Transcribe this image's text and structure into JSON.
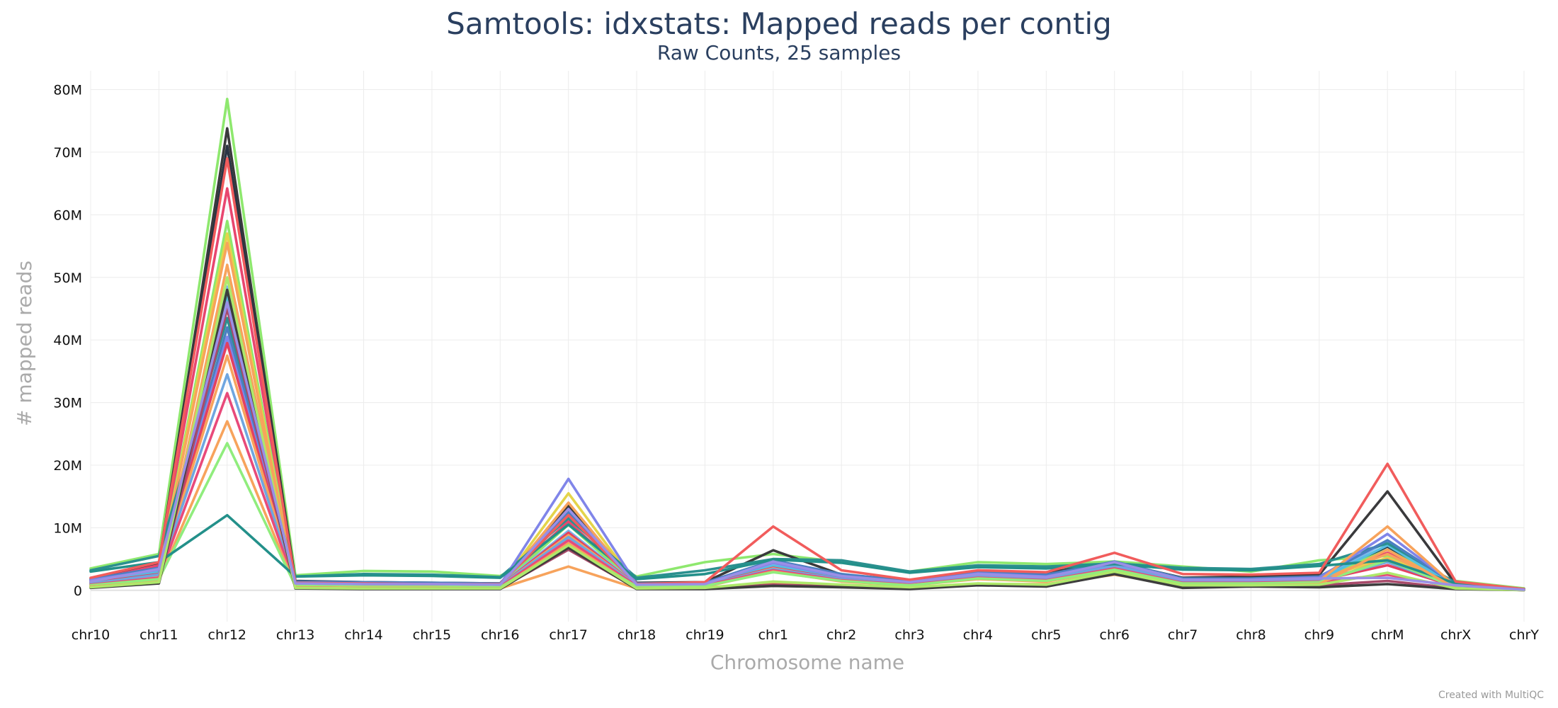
{
  "chart_data": {
    "type": "line",
    "title": "Samtools: idxstats: Mapped reads per contig",
    "subtitle": "Raw Counts, 25 samples",
    "xlabel": "Chromosome name",
    "ylabel": "# mapped reads",
    "credit": "Created with MultiQC",
    "categories": [
      "chr10",
      "chr11",
      "chr12",
      "chr13",
      "chr14",
      "chr15",
      "chr16",
      "chr17",
      "chr18",
      "chr19",
      "chr1",
      "chr2",
      "chr3",
      "chr4",
      "chr5",
      "chr6",
      "chr7",
      "chr8",
      "chr9",
      "chrM",
      "chrX",
      "chrY"
    ],
    "yticks": [
      0,
      10000000,
      20000000,
      30000000,
      40000000,
      50000000,
      60000000,
      70000000,
      80000000
    ],
    "ytick_labels": [
      "0",
      "10M",
      "20M",
      "30M",
      "40M",
      "50M",
      "60M",
      "70M",
      "80M"
    ],
    "ylim": [
      -5000000,
      83000000
    ],
    "grid": true,
    "legend": "none",
    "series": [
      {
        "color": "#8ee86e",
        "values": [
          3.5,
          5.8,
          78.5,
          2.4,
          3.1,
          3.0,
          2.3,
          8.0,
          2.2,
          4.5,
          5.8,
          4.5,
          3.0,
          4.5,
          4.2,
          4.6,
          3.8,
          3.0,
          4.8,
          5.5,
          1.5,
          0.3
        ]
      },
      {
        "color": "#3a3a3c",
        "values": [
          1.8,
          4.2,
          73.8,
          1.5,
          1.3,
          1.2,
          1.1,
          13.5,
          1.2,
          1.3,
          6.4,
          2.5,
          1.6,
          3.0,
          2.8,
          4.5,
          2.0,
          2.2,
          2.5,
          15.8,
          1.0,
          0.2
        ]
      },
      {
        "color": "#2a3444",
        "values": [
          1.5,
          3.8,
          71.0,
          1.2,
          1.1,
          1.0,
          0.9,
          12.0,
          0.9,
          1.1,
          3.0,
          2.0,
          1.2,
          2.5,
          2.0,
          4.0,
          1.5,
          1.5,
          1.8,
          7.0,
          0.7,
          0.1
        ]
      },
      {
        "color": "#e8466f",
        "values": [
          1.6,
          4.0,
          64.2,
          1.3,
          1.2,
          1.1,
          1.0,
          11.0,
          1.0,
          1.2,
          4.5,
          2.4,
          1.4,
          2.8,
          2.4,
          4.4,
          1.8,
          1.8,
          2.0,
          6.0,
          0.8,
          0.15
        ]
      },
      {
        "color": "#8ee86e",
        "values": [
          1.2,
          3.0,
          59.0,
          1.1,
          1.0,
          0.9,
          0.8,
          10.5,
          0.9,
          1.0,
          4.0,
          2.0,
          1.2,
          2.5,
          2.0,
          4.2,
          1.6,
          1.6,
          1.8,
          6.5,
          0.7,
          0.1
        ]
      },
      {
        "color": "#e4d44a",
        "values": [
          1.3,
          3.2,
          57.0,
          1.0,
          0.9,
          0.9,
          0.8,
          15.5,
          0.9,
          1.0,
          4.2,
          2.1,
          1.3,
          2.6,
          2.1,
          4.0,
          1.7,
          1.7,
          1.9,
          5.2,
          0.7,
          0.1
        ]
      },
      {
        "color": "#f7a35c",
        "values": [
          1.0,
          2.8,
          55.5,
          0.9,
          0.8,
          0.8,
          0.7,
          14.0,
          0.8,
          0.9,
          3.8,
          1.9,
          1.1,
          2.3,
          1.9,
          3.8,
          1.5,
          1.5,
          1.7,
          5.8,
          0.6,
          0.1
        ]
      },
      {
        "color": "#7cb5ec",
        "values": [
          1.4,
          3.1,
          48.5,
          1.1,
          1.0,
          0.9,
          0.8,
          9.5,
          0.9,
          1.0,
          4.0,
          2.0,
          1.2,
          2.4,
          2.0,
          4.1,
          1.6,
          1.6,
          1.8,
          7.8,
          0.7,
          0.1
        ]
      },
      {
        "color": "#55bfe0",
        "values": [
          1.3,
          3.0,
          47.0,
          1.0,
          0.9,
          0.9,
          0.8,
          9.0,
          0.8,
          0.9,
          3.9,
          1.9,
          1.1,
          2.3,
          1.9,
          4.0,
          1.5,
          1.5,
          1.7,
          7.2,
          0.6,
          0.1
        ]
      },
      {
        "color": "#2b908f",
        "values": [
          3.2,
          5.5,
          43.5,
          2.2,
          2.6,
          2.5,
          2.1,
          11.5,
          2.0,
          3.2,
          5.0,
          4.8,
          3.0,
          4.0,
          3.8,
          4.3,
          3.6,
          3.4,
          4.2,
          7.5,
          1.2,
          0.2
        ]
      },
      {
        "color": "#4a7fc1",
        "values": [
          1.8,
          3.6,
          42.0,
          1.4,
          1.3,
          1.2,
          1.1,
          12.5,
          1.1,
          1.2,
          4.8,
          2.6,
          1.5,
          2.9,
          2.5,
          4.6,
          1.9,
          1.9,
          2.2,
          8.0,
          0.9,
          0.15
        ]
      },
      {
        "color": "#8085e9",
        "values": [
          1.6,
          3.3,
          40.5,
          1.2,
          1.1,
          1.0,
          0.9,
          17.8,
          1.0,
          1.1,
          4.4,
          2.2,
          1.3,
          2.7,
          2.2,
          4.3,
          1.7,
          1.7,
          2.0,
          9.0,
          0.8,
          0.1
        ]
      },
      {
        "color": "#e4405f",
        "values": [
          1.2,
          2.6,
          39.5,
          1.0,
          0.9,
          0.8,
          0.7,
          9.2,
          0.8,
          0.9,
          3.6,
          1.8,
          1.0,
          2.2,
          1.8,
          3.7,
          1.4,
          1.4,
          1.6,
          4.0,
          0.6,
          0.1
        ]
      },
      {
        "color": "#f7a35c",
        "values": [
          1.0,
          2.4,
          37.5,
          0.9,
          0.8,
          0.8,
          0.7,
          8.8,
          0.8,
          0.8,
          3.5,
          1.7,
          1.0,
          2.1,
          1.7,
          3.6,
          1.3,
          1.3,
          1.5,
          10.2,
          0.6,
          0.1
        ]
      },
      {
        "color": "#6fa6e0",
        "values": [
          1.1,
          2.5,
          34.5,
          1.0,
          0.9,
          0.8,
          0.7,
          8.5,
          0.8,
          0.9,
          3.4,
          1.8,
          1.0,
          2.2,
          1.8,
          3.9,
          1.4,
          1.4,
          1.6,
          4.5,
          0.6,
          0.1
        ]
      },
      {
        "color": "#e84a7a",
        "values": [
          0.9,
          2.0,
          31.5,
          0.8,
          0.7,
          0.7,
          0.6,
          8.0,
          0.7,
          0.8,
          3.2,
          1.6,
          0.9,
          2.0,
          1.6,
          3.5,
          1.2,
          1.2,
          1.4,
          2.5,
          0.5,
          0.1
        ]
      },
      {
        "color": "#f7a35c",
        "values": [
          0.7,
          1.6,
          27.0,
          0.6,
          0.5,
          0.5,
          0.4,
          7.5,
          0.5,
          0.6,
          3.0,
          1.4,
          0.8,
          1.8,
          1.4,
          3.2,
          1.0,
          1.0,
          1.2,
          5.0,
          0.4,
          0.05
        ]
      },
      {
        "color": "#90ed7d",
        "values": [
          0.8,
          1.8,
          23.5,
          0.7,
          0.6,
          0.6,
          0.5,
          7.0,
          0.6,
          0.7,
          2.9,
          1.5,
          0.8,
          1.9,
          1.5,
          3.3,
          1.1,
          1.1,
          1.3,
          4.8,
          0.5,
          0.05
        ]
      },
      {
        "color": "#23908a",
        "values": [
          3.0,
          4.5,
          12.0,
          2.2,
          2.4,
          2.3,
          2.0,
          10.5,
          1.8,
          2.6,
          4.9,
          4.4,
          2.8,
          3.7,
          3.5,
          4.2,
          3.3,
          3.2,
          3.9,
          4.8,
          1.1,
          0.2
        ]
      },
      {
        "color": "#f15c5c",
        "values": [
          2.0,
          4.5,
          69.0,
          1.2,
          1.1,
          1.0,
          1.0,
          12.0,
          1.0,
          1.3,
          10.2,
          3.2,
          1.7,
          3.2,
          2.9,
          6.0,
          2.6,
          2.5,
          2.8,
          20.2,
          1.4,
          0.2
        ]
      },
      {
        "color": "#f7a35c",
        "values": [
          0.6,
          1.3,
          52.0,
          0.5,
          0.4,
          0.4,
          0.3,
          3.8,
          0.3,
          0.3,
          1.2,
          0.8,
          0.5,
          1.0,
          1.0,
          2.5,
          0.8,
          0.8,
          1.0,
          6.5,
          0.3,
          0.05
        ]
      },
      {
        "color": "#a84a6a",
        "values": [
          0.5,
          1.2,
          45.0,
          0.4,
          0.3,
          0.3,
          0.3,
          6.5,
          0.3,
          0.3,
          0.9,
          0.6,
          0.4,
          0.9,
          0.8,
          2.8,
          0.7,
          0.7,
          0.8,
          1.5,
          0.3,
          0.05
        ]
      },
      {
        "color": "#3d3d3d",
        "values": [
          0.4,
          1.1,
          48.0,
          0.3,
          0.2,
          0.2,
          0.2,
          6.8,
          0.2,
          0.2,
          0.7,
          0.5,
          0.2,
          0.8,
          0.6,
          2.6,
          0.4,
          0.6,
          0.5,
          1.0,
          0.2,
          0.03
        ]
      },
      {
        "color": "#aee86a",
        "values": [
          0.5,
          1.3,
          50.0,
          0.4,
          0.3,
          0.3,
          0.3,
          7.2,
          0.3,
          0.4,
          1.4,
          0.9,
          0.5,
          1.1,
          0.9,
          3.0,
          0.8,
          0.8,
          0.9,
          2.8,
          0.3,
          0.05
        ]
      },
      {
        "color": "#9a8fe6",
        "values": [
          1.4,
          3.4,
          46.0,
          1.1,
          1.0,
          1.0,
          0.9,
          13.0,
          0.9,
          1.0,
          4.6,
          2.3,
          1.3,
          2.6,
          2.1,
          4.5,
          1.7,
          1.7,
          1.9,
          2.0,
          0.8,
          0.1
        ]
      }
    ]
  }
}
